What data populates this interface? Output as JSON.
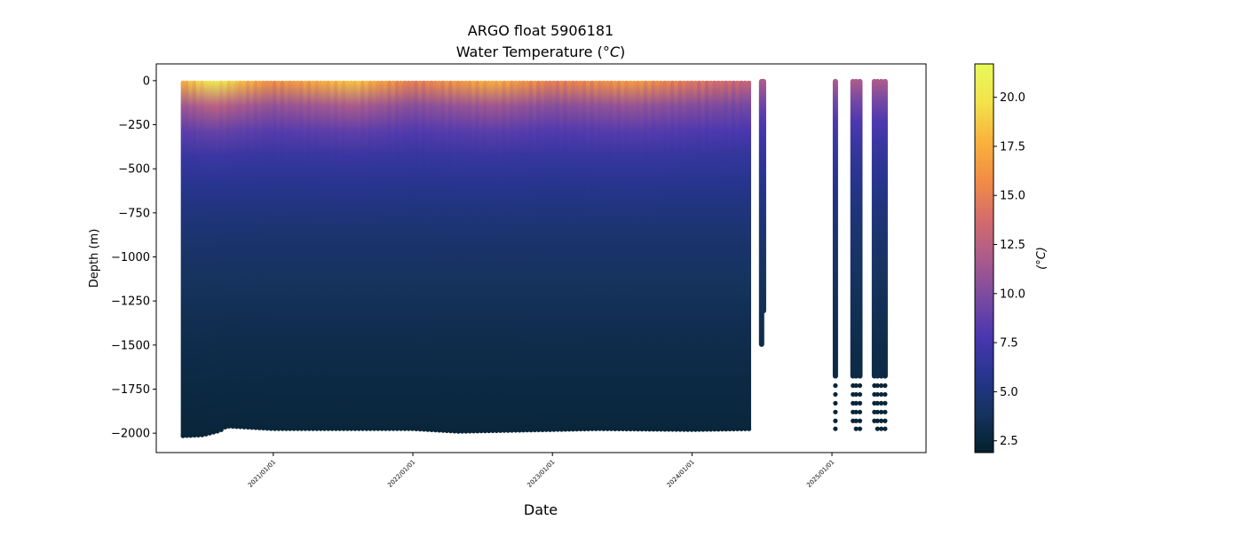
{
  "chart_data": {
    "type": "scatter",
    "title": "ARGO float 5906181",
    "subtitle_prefix": "Water Temperature (",
    "subtitle_unit": "°C",
    "subtitle_suffix": ")",
    "xlabel": "Date",
    "ylabel": "Depth (m)",
    "colorbar_label": "(°C)",
    "colormap": "thermal",
    "colormap_stops": [
      "#04202c",
      "#15335e",
      "#27358f",
      "#4a37b0",
      "#7b4aa0",
      "#ab5b8c",
      "#d46c6b",
      "#f28c45",
      "#f9b23c",
      "#f3e24a",
      "#e8fa5b"
    ],
    "x_ticks": [
      "2021/01/01",
      "2022/01/01",
      "2023/01/01",
      "2024/01/01",
      "2025/01/01"
    ],
    "xlim": [
      "2020/03/01",
      "2025/09/04"
    ],
    "y_ticks": [
      0,
      -250,
      -500,
      -750,
      -1000,
      -1250,
      -1500,
      -1750,
      -2000
    ],
    "ylim": [
      -2110,
      95
    ],
    "colorbar_ticks": [
      2.5,
      5.0,
      7.5,
      10.0,
      12.5,
      15.0,
      17.5,
      20.0
    ],
    "colorbar_range": [
      1.9,
      21.7
    ],
    "series": [
      {
        "segment": "continuous",
        "date_range": [
          "2020/05/10",
          "2024/06/05"
        ],
        "max_depth_by_date": [
          [
            "2020/05/10",
            -2015
          ],
          [
            "2020/07/01",
            -2010
          ],
          [
            "2020/08/15",
            -1985
          ],
          [
            "2020/09/01",
            -1960
          ],
          [
            "2021/01/01",
            -1975
          ],
          [
            "2022/01/01",
            -1975
          ],
          [
            "2022/05/01",
            -1990
          ],
          [
            "2023/01/01",
            -1980
          ],
          [
            "2023/05/01",
            -1975
          ],
          [
            "2024/01/01",
            -1980
          ],
          [
            "2024/06/05",
            -1975
          ]
        ],
        "surface_temp_by_date": [
          [
            "2020/05/10",
            17.5
          ],
          [
            "2020/08/01",
            20.5
          ],
          [
            "2020/10/15",
            18.0
          ],
          [
            "2021/01/01",
            16.0
          ],
          [
            "2021/08/01",
            18.5
          ],
          [
            "2022/01/01",
            15.0
          ],
          [
            "2022/08/01",
            17.5
          ],
          [
            "2023/01/01",
            15.0
          ],
          [
            "2023/08/01",
            16.5
          ],
          [
            "2024/01/01",
            14.5
          ],
          [
            "2024/06/05",
            13.0
          ]
        ]
      },
      {
        "segment": "isolated",
        "date": "2024/07/01",
        "max_depth": -1500,
        "surface_temp": 12.0
      },
      {
        "segment": "isolated",
        "date": "2024/07/06",
        "max_depth": -1310,
        "surface_temp": 12.0
      },
      {
        "segment": "late-profiles",
        "dates": [
          "2025/01/10",
          "2025/02/25",
          "2025/03/05",
          "2025/03/15",
          "2025/04/22",
          "2025/04/30",
          "2025/05/10",
          "2025/05/20"
        ],
        "max_depths": [
          -1680,
          -1680,
          -1680,
          -1680,
          -1680,
          -1680,
          -1680,
          -1680
        ],
        "surface_temp": 12.0,
        "deep_samples": [
          -1730,
          -1780,
          -1830,
          -1880,
          -1930,
          -1975
        ]
      }
    ],
    "temperature_profile": [
      [
        0,
        17.5
      ],
      [
        -50,
        15.0
      ],
      [
        -150,
        11.0
      ],
      [
        -250,
        9.0
      ],
      [
        -400,
        7.0
      ],
      [
        -600,
        5.8
      ],
      [
        -800,
        4.8
      ],
      [
        -1000,
        4.2
      ],
      [
        -1250,
        3.6
      ],
      [
        -1500,
        3.1
      ],
      [
        -1750,
        2.8
      ],
      [
        -2000,
        2.5
      ]
    ],
    "grid": false,
    "legend": "none"
  }
}
